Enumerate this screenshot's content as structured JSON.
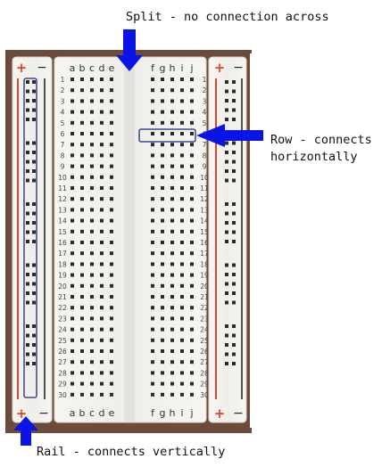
{
  "annotations": {
    "split": "Split - no connection across",
    "row": "Row - connects\nhorizontally",
    "rail": "Rail - connects vertically"
  },
  "breadboard": {
    "left_columns": [
      "a",
      "b",
      "c",
      "d",
      "e"
    ],
    "right_columns": [
      "f",
      "g",
      "h",
      "i",
      "j"
    ],
    "rows": 30,
    "rail_plus": "+",
    "rail_minus": "−"
  },
  "colors": {
    "arrow": "#0a14e6",
    "highlight_box": "#1a2a7a",
    "rail_red": "#e0452e",
    "rail_black": "#1a1a1a",
    "board": "#f1f0ec",
    "hole": "#2a2a2a",
    "wood": "#6b4b3a"
  }
}
